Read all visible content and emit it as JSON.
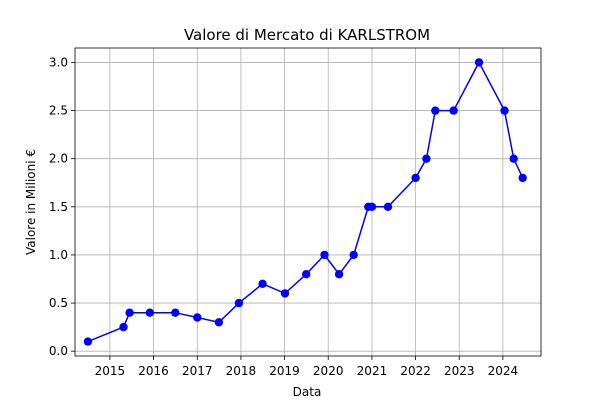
{
  "chart_data": {
    "type": "line",
    "title": "Valore di Mercato di KARLSTROM",
    "xlabel": "Data",
    "ylabel": "Valore in Milioni €",
    "grid": true,
    "color": "#0000ff",
    "xlim": [
      "2014-03-15",
      "2024-11-15"
    ],
    "ylim": [
      -0.05,
      3.15
    ],
    "x_ticks": [
      "2015",
      "2016",
      "2017",
      "2018",
      "2019",
      "2020",
      "2021",
      "2022",
      "2023",
      "2024"
    ],
    "y_ticks": [
      "0.0",
      "0.5",
      "1.0",
      "1.5",
      "2.0",
      "2.5",
      "3.0"
    ],
    "series": [
      {
        "x": [
          "2014-07-01",
          "2015-04-25",
          "2015-06-15",
          "2015-12-01",
          "2016-07-01",
          "2017-01-01",
          "2017-07-01",
          "2017-12-15",
          "2018-07-01",
          "2019-01-05",
          "2019-07-01",
          "2019-12-01",
          "2020-04-01",
          "2020-08-01",
          "2020-12-01",
          "2021-01-01",
          "2021-05-15",
          "2022-01-01",
          "2022-04-01",
          "2022-06-15",
          "2022-11-15",
          "2023-06-15",
          "2024-01-15",
          "2024-04-01",
          "2024-06-15"
        ],
        "values": [
          0.1,
          0.25,
          0.4,
          0.4,
          0.4,
          0.35,
          0.3,
          0.5,
          0.7,
          0.6,
          0.8,
          1.0,
          0.8,
          1.0,
          1.5,
          1.5,
          1.5,
          1.8,
          2.0,
          2.5,
          2.5,
          3.0,
          2.5,
          2.0,
          1.8
        ]
      }
    ]
  }
}
